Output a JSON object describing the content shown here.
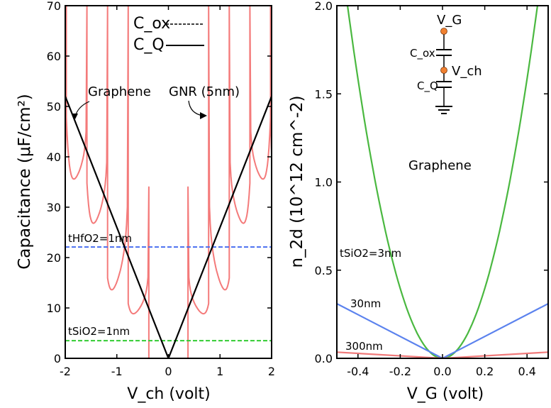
{
  "colors": {
    "gnr": "#f47a7a",
    "graphene": "#000000",
    "hfo2": "#4a6ff0",
    "sio2": "#33cc33",
    "green_curve": "#4ab840",
    "blue_curve": "#5b82ee",
    "red_curve": "#f07a7a",
    "node": "#f08030"
  },
  "chart_data": [
    {
      "type": "line",
      "panel": "left",
      "ylabel": "Capacitance (μF/cm²)",
      "xlabel": "V_ch (volt)",
      "xlim": [
        -2,
        2
      ],
      "ylim": [
        0,
        70
      ],
      "xticks": [
        -2,
        -1,
        0,
        1,
        2
      ],
      "yticks": [
        0,
        10,
        20,
        30,
        40,
        50,
        60,
        70
      ],
      "legend": [
        {
          "label": "C_ox",
          "style": "dashed"
        },
        {
          "label": "C_Q",
          "style": "solid"
        }
      ],
      "annotations": [
        {
          "text": "Graphene",
          "points_to": [
            -1.98,
            50
          ]
        },
        {
          "text": "GNR (5nm)",
          "points_to": [
            0.78,
            48
          ]
        }
      ],
      "series": [
        {
          "name": "Graphene C_Q",
          "style": "solid",
          "x": [
            -2,
            0,
            2
          ],
          "y": [
            52,
            0,
            52
          ]
        },
        {
          "name": "GNR (5nm) C_Q",
          "style": "solid",
          "subband_edges": [
            0.38,
            0.78,
            1.18,
            1.58,
            1.98
          ],
          "peak_heights": [
            34,
            70,
            70,
            70,
            70
          ],
          "valley_values": [
            7.5,
            11,
            24,
            33,
            33
          ]
        },
        {
          "name": "C_ox HfO2 1nm",
          "style": "dashed",
          "label": "tHfO2=1nm",
          "y_constant": 22.1
        },
        {
          "name": "C_ox SiO2 1nm",
          "style": "dashed",
          "label": "tSiO2=1nm",
          "y_constant": 3.5
        }
      ]
    },
    {
      "type": "line",
      "panel": "right",
      "ylabel": "n_2d (10^12 cm^-2)",
      "xlabel": "V_G (volt)",
      "xlim": [
        -0.5,
        0.5
      ],
      "ylim": [
        0,
        2.0
      ],
      "xticks": [
        -0.4,
        -0.2,
        0.0,
        0.2,
        0.4
      ],
      "yticks": [
        0.0,
        0.5,
        1.0,
        1.5,
        2.0
      ],
      "annotations": [
        {
          "text": "Graphene"
        }
      ],
      "series": [
        {
          "name": "3nm",
          "label": "tSiO2=3nm",
          "a": 9.9
        },
        {
          "name": "30nm",
          "label": "30nm",
          "x": [
            -0.5,
            0,
            0.5
          ],
          "y": [
            0.31,
            0,
            0.31
          ]
        },
        {
          "name": "300nm",
          "label": "300nm",
          "x": [
            -0.5,
            0,
            0.5
          ],
          "y": [
            0.035,
            0,
            0.035
          ]
        }
      ],
      "inset": {
        "node_top": "V_G",
        "cap_top": "C_ox",
        "node_mid": "V_ch",
        "cap_bottom": "C_Q"
      }
    }
  ]
}
